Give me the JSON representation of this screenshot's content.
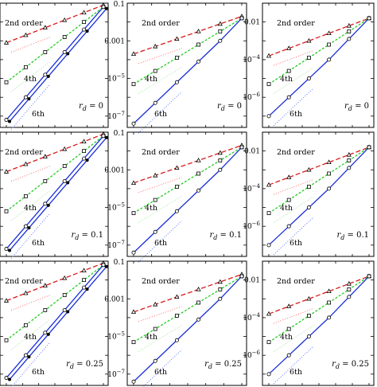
{
  "colors": {
    "second": "#d81b1b",
    "fourth": "#22cc22",
    "sixth": "#1a2fd6",
    "ref_second": "#ff6b6b",
    "ref_fourth": "#9be89b",
    "ref_sixth": "#5a78ff"
  },
  "chart_data": [
    {
      "type": "line",
      "row": 0,
      "col": 0,
      "yscale": "log",
      "ticks": [],
      "labels": {
        "second": "2nd order",
        "fourth": "4th",
        "sixth": "6th",
        "rd": "r_d = 0"
      },
      "series": [
        {
          "name": "2nd order",
          "x_rel": [
            0,
            0.2,
            0.4,
            0.6,
            0.8,
            1
          ],
          "log10_y": [
            -3.1,
            -2.7,
            -2.3,
            -1.9,
            -1.5,
            -1.1
          ]
        },
        {
          "name": "4th",
          "x_rel": [
            0,
            0.2,
            0.4,
            0.6,
            0.8,
            1
          ],
          "log10_y": [
            -5.2,
            -4.4,
            -3.6,
            -2.8,
            -2.0,
            -1.2
          ]
        },
        {
          "name": "6th",
          "x_rel": [
            0,
            0.2,
            0.4,
            0.6,
            0.8,
            1
          ],
          "log10_y": [
            -7.2,
            -6.0,
            -4.8,
            -3.6,
            -2.4,
            -1.2
          ]
        }
      ]
    },
    {
      "type": "line",
      "row": 0,
      "col": 1,
      "yscale": "log",
      "ticks": [
        "0.1",
        "0.001",
        "10^-5",
        "10^-7"
      ],
      "labels": {
        "second": "2nd order",
        "fourth": "4th",
        "sixth": "6th",
        "rd": "r_d = 0"
      },
      "series": [
        {
          "name": "2nd order",
          "x_rel": [
            0,
            0.2,
            0.4,
            0.6,
            0.8,
            1
          ],
          "log10_y": [
            -3.7,
            -3.3,
            -2.9,
            -2.5,
            -2.1,
            -1.7
          ]
        },
        {
          "name": "4th",
          "x_rel": [
            0,
            0.2,
            0.4,
            0.6,
            0.8,
            1
          ],
          "log10_y": [
            -5.3,
            -4.6,
            -3.9,
            -3.2,
            -2.5,
            -1.8
          ]
        },
        {
          "name": "6th",
          "x_rel": [
            0,
            0.2,
            0.4,
            0.6,
            0.8,
            1
          ],
          "log10_y": [
            -7.4,
            -6.3,
            -5.2,
            -4.1,
            -3.0,
            -1.8
          ]
        }
      ]
    },
    {
      "type": "line",
      "row": 0,
      "col": 2,
      "yscale": "log",
      "ticks": [
        "0.01",
        "10^-4",
        "10^-6"
      ],
      "labels": {
        "second": "2nd order",
        "fourth": "4th",
        "sixth": "6th",
        "rd": "r_d = 0"
      },
      "series": [
        {
          "name": "2nd order",
          "x_rel": [
            0,
            0.2,
            0.4,
            0.6,
            0.8,
            1
          ],
          "log10_y": [
            -3.8,
            -3.4,
            -3.0,
            -2.6,
            -2.2,
            -1.8
          ]
        },
        {
          "name": "4th",
          "x_rel": [
            0,
            0.2,
            0.4,
            0.6,
            0.8,
            1
          ],
          "log10_y": [
            -5.3,
            -4.6,
            -3.9,
            -3.2,
            -2.5,
            -1.8
          ]
        },
        {
          "name": "6th",
          "x_rel": [
            0,
            0.2,
            0.4,
            0.6,
            0.8,
            1
          ],
          "log10_y": [
            -7.0,
            -6.0,
            -5.0,
            -4.0,
            -2.9,
            -1.8
          ]
        }
      ]
    },
    {
      "type": "line",
      "row": 1,
      "col": 0,
      "yscale": "log",
      "ticks": [],
      "labels": {
        "second": "2nd order",
        "fourth": "4th",
        "sixth": "6th",
        "rd": "r_d = 0.1"
      },
      "series": [
        {
          "name": "2nd order",
          "x_rel": [
            0,
            0.2,
            0.4,
            0.6,
            0.8,
            1
          ],
          "log10_y": [
            -3.1,
            -2.7,
            -2.3,
            -1.9,
            -1.5,
            -1.1
          ]
        },
        {
          "name": "4th",
          "x_rel": [
            0,
            0.2,
            0.4,
            0.6,
            0.8,
            1
          ],
          "log10_y": [
            -5.2,
            -4.4,
            -3.6,
            -2.8,
            -2.0,
            -1.2
          ]
        },
        {
          "name": "6th",
          "x_rel": [
            0,
            0.2,
            0.4,
            0.6,
            0.8,
            1
          ],
          "log10_y": [
            -7.2,
            -6.0,
            -4.8,
            -3.6,
            -2.4,
            -1.2
          ]
        }
      ]
    },
    {
      "type": "line",
      "row": 1,
      "col": 1,
      "yscale": "log",
      "ticks": [
        "0.1",
        "0.001",
        "10^-5",
        "10^-7"
      ],
      "labels": {
        "second": "2nd order",
        "fourth": "4th",
        "sixth": "6th",
        "rd": "r_d = 0.1"
      },
      "series": [
        {
          "name": "2nd order",
          "x_rel": [
            0,
            0.2,
            0.4,
            0.6,
            0.8,
            1
          ],
          "log10_y": [
            -3.7,
            -3.3,
            -2.9,
            -2.5,
            -2.1,
            -1.7
          ]
        },
        {
          "name": "4th",
          "x_rel": [
            0,
            0.2,
            0.4,
            0.6,
            0.8,
            1
          ],
          "log10_y": [
            -5.3,
            -4.6,
            -3.9,
            -3.2,
            -2.5,
            -1.8
          ]
        },
        {
          "name": "6th",
          "x_rel": [
            0,
            0.2,
            0.4,
            0.6,
            0.8,
            1
          ],
          "log10_y": [
            -7.4,
            -6.3,
            -5.2,
            -4.1,
            -3.0,
            -1.8
          ]
        }
      ]
    },
    {
      "type": "line",
      "row": 1,
      "col": 2,
      "yscale": "log",
      "ticks": [
        "0.01",
        "10^-4",
        "10^-6"
      ],
      "labels": {
        "second": "2nd order",
        "fourth": "4th",
        "sixth": "6th",
        "rd": "r_d = 0.1"
      },
      "series": [
        {
          "name": "2nd order",
          "x_rel": [
            0,
            0.2,
            0.4,
            0.6,
            0.8,
            1
          ],
          "log10_y": [
            -3.8,
            -3.4,
            -3.0,
            -2.6,
            -2.2,
            -1.8
          ]
        },
        {
          "name": "4th",
          "x_rel": [
            0,
            0.2,
            0.4,
            0.6,
            0.8,
            1
          ],
          "log10_y": [
            -5.3,
            -4.6,
            -3.9,
            -3.2,
            -2.5,
            -1.8
          ]
        },
        {
          "name": "6th",
          "x_rel": [
            0,
            0.2,
            0.4,
            0.6,
            0.8,
            1
          ],
          "log10_y": [
            -7.0,
            -6.0,
            -5.0,
            -4.0,
            -2.9,
            -1.8
          ]
        }
      ]
    },
    {
      "type": "line",
      "row": 2,
      "col": 0,
      "yscale": "log",
      "ticks": [],
      "labels": {
        "second": "2nd order",
        "fourth": "4th",
        "sixth": "6th",
        "rd": "r_d = 0.25"
      },
      "series": [
        {
          "name": "2nd order",
          "x_rel": [
            0,
            0.2,
            0.4,
            0.6,
            0.8,
            1
          ],
          "log10_y": [
            -3.1,
            -2.7,
            -2.3,
            -1.9,
            -1.5,
            -1.1
          ]
        },
        {
          "name": "4th",
          "x_rel": [
            0,
            0.2,
            0.4,
            0.6,
            0.8,
            1
          ],
          "log10_y": [
            -5.2,
            -4.4,
            -3.6,
            -2.8,
            -2.0,
            -1.2
          ]
        },
        {
          "name": "6th",
          "x_rel": [
            0,
            0.2,
            0.4,
            0.6,
            0.8,
            1
          ],
          "log10_y": [
            -7.2,
            -6.0,
            -4.8,
            -3.6,
            -2.4,
            -1.2
          ]
        }
      ]
    },
    {
      "type": "line",
      "row": 2,
      "col": 1,
      "yscale": "log",
      "ticks": [
        "0.1",
        "0.001",
        "10^-5",
        "10^-7"
      ],
      "labels": {
        "second": "2nd order",
        "fourth": "4th",
        "sixth": "6th",
        "rd": "r_d = 0.25"
      },
      "series": [
        {
          "name": "2nd order",
          "x_rel": [
            0,
            0.2,
            0.4,
            0.6,
            0.8,
            1
          ],
          "log10_y": [
            -3.7,
            -3.3,
            -2.9,
            -2.5,
            -2.1,
            -1.7
          ]
        },
        {
          "name": "4th",
          "x_rel": [
            0,
            0.2,
            0.4,
            0.6,
            0.8,
            1
          ],
          "log10_y": [
            -5.3,
            -4.6,
            -3.9,
            -3.2,
            -2.5,
            -1.8
          ]
        },
        {
          "name": "6th",
          "x_rel": [
            0,
            0.2,
            0.4,
            0.6,
            0.8,
            1
          ],
          "log10_y": [
            -7.4,
            -6.3,
            -5.2,
            -4.1,
            -3.0,
            -1.8
          ]
        }
      ]
    },
    {
      "type": "line",
      "row": 2,
      "col": 2,
      "yscale": "log",
      "ticks": [
        "0.01",
        "10^-4",
        "10^-6"
      ],
      "labels": {
        "second": "2nd order",
        "fourth": "4th",
        "sixth": "6th",
        "rd": "r_d = 0.25"
      },
      "series": [
        {
          "name": "2nd order",
          "x_rel": [
            0,
            0.2,
            0.4,
            0.6,
            0.8,
            1
          ],
          "log10_y": [
            -3.8,
            -3.4,
            -3.0,
            -2.6,
            -2.2,
            -1.8
          ]
        },
        {
          "name": "4th",
          "x_rel": [
            0,
            0.2,
            0.4,
            0.6,
            0.8,
            1
          ],
          "log10_y": [
            -5.3,
            -4.6,
            -3.9,
            -3.2,
            -2.5,
            -1.8
          ]
        },
        {
          "name": "6th",
          "x_rel": [
            0,
            0.2,
            0.4,
            0.6,
            0.8,
            1
          ],
          "log10_y": [
            -7.0,
            -6.0,
            -5.0,
            -4.0,
            -2.9,
            -1.8
          ]
        }
      ]
    }
  ]
}
